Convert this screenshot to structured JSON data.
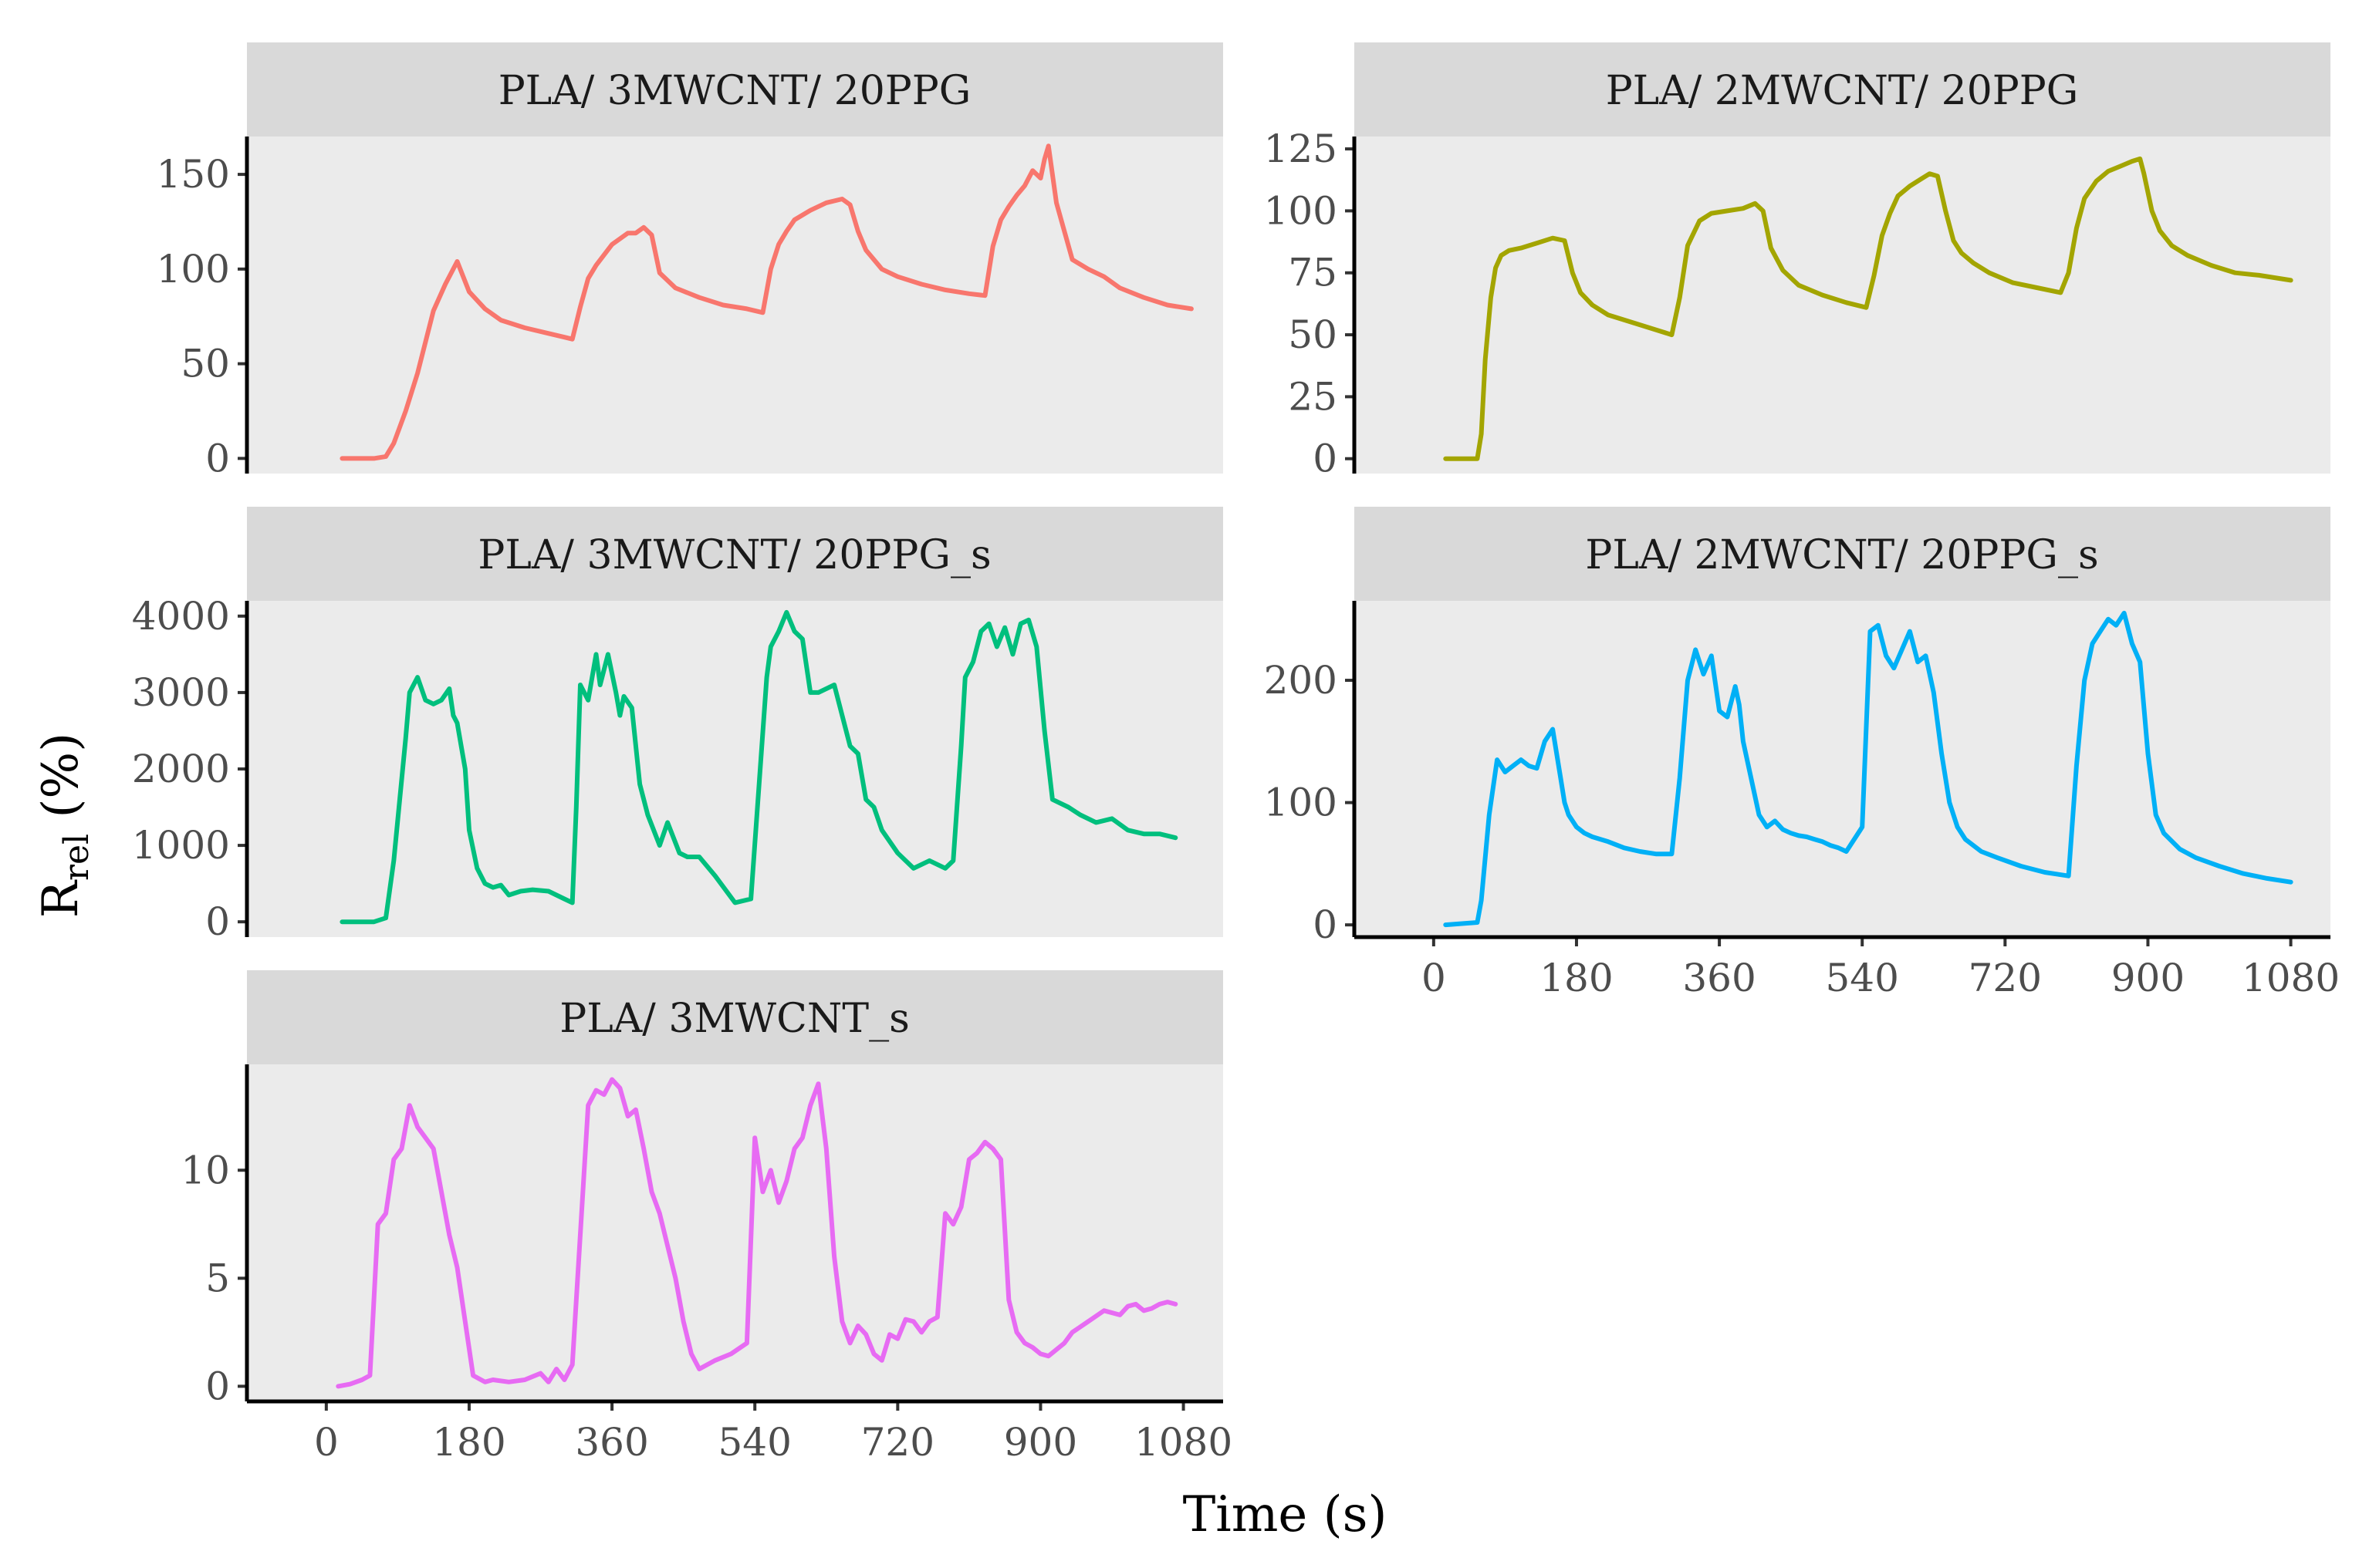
{
  "figure": {
    "xlabel": "Time (s)",
    "ylabel_main": "R",
    "ylabel_sub": "rel",
    "ylabel_unit": " (%)"
  },
  "chart_data": [
    {
      "type": "line",
      "title": "PLA/ 3MWCNT/ 20PPG",
      "color": "#F8766D",
      "xlim": [
        -100,
        1130
      ],
      "ylim": [
        -8,
        170
      ],
      "y_ticks": [
        0,
        50,
        100,
        150
      ],
      "x_ticks": [],
      "x": [
        20,
        60,
        75,
        85,
        100,
        115,
        135,
        150,
        165,
        180,
        200,
        220,
        250,
        280,
        300,
        310,
        320,
        330,
        340,
        360,
        380,
        390,
        400,
        410,
        420,
        440,
        470,
        500,
        530,
        550,
        560,
        570,
        580,
        590,
        610,
        630,
        650,
        660,
        670,
        680,
        700,
        720,
        750,
        780,
        810,
        830,
        840,
        850,
        860,
        870,
        880,
        890,
        900,
        905,
        910,
        920,
        930,
        940,
        960,
        980,
        1000,
        1030,
        1060,
        1090
      ],
      "y": [
        0,
        0,
        1,
        8,
        25,
        45,
        78,
        92,
        104,
        88,
        79,
        73,
        69,
        66,
        64,
        63,
        80,
        95,
        102,
        113,
        119,
        119,
        122,
        118,
        98,
        90,
        85,
        81,
        79,
        77,
        100,
        113,
        120,
        126,
        131,
        135,
        137,
        134,
        120,
        110,
        100,
        96,
        92,
        89,
        87,
        86,
        112,
        126,
        133,
        139,
        144,
        152,
        148,
        158,
        165,
        135,
        120,
        105,
        100,
        96,
        90,
        85,
        81,
        79
      ]
    },
    {
      "type": "line",
      "title": "PLA/ 2MWCNT/ 20PPG",
      "color": "#A3A500",
      "xlim": [
        -100,
        1130
      ],
      "ylim": [
        -6,
        130
      ],
      "y_ticks": [
        0,
        25,
        50,
        75,
        100,
        125
      ],
      "x_ticks": [],
      "x": [
        15,
        55,
        60,
        65,
        72,
        78,
        85,
        95,
        110,
        130,
        150,
        165,
        175,
        185,
        200,
        220,
        250,
        280,
        300,
        310,
        320,
        335,
        350,
        370,
        390,
        405,
        415,
        425,
        440,
        460,
        490,
        520,
        545,
        555,
        565,
        575,
        585,
        600,
        615,
        625,
        635,
        645,
        655,
        665,
        680,
        700,
        730,
        760,
        790,
        800,
        810,
        820,
        835,
        850,
        865,
        880,
        890,
        895,
        905,
        915,
        930,
        950,
        980,
        1010,
        1040,
        1080
      ],
      "y": [
        0,
        0,
        10,
        40,
        65,
        77,
        82,
        84,
        85,
        87,
        89,
        88,
        75,
        67,
        62,
        58,
        55,
        52,
        50,
        65,
        86,
        96,
        99,
        100,
        101,
        103,
        100,
        85,
        76,
        70,
        66,
        63,
        61,
        74,
        90,
        99,
        106,
        110,
        113,
        115,
        114,
        100,
        88,
        83,
        79,
        75,
        71,
        69,
        67,
        75,
        93,
        105,
        112,
        116,
        118,
        120,
        121,
        115,
        100,
        92,
        86,
        82,
        78,
        75,
        74,
        72
      ]
    },
    {
      "type": "line",
      "title": "PLA/ 3MWCNT/ 20PPG_s",
      "color": "#00BF7D",
      "xlim": [
        -100,
        1130
      ],
      "ylim": [
        -200,
        4200
      ],
      "y_ticks": [
        0,
        1000,
        2000,
        3000,
        4000
      ],
      "x_ticks": [],
      "x": [
        20,
        60,
        75,
        85,
        100,
        105,
        115,
        125,
        135,
        145,
        155,
        160,
        165,
        175,
        180,
        190,
        200,
        210,
        220,
        230,
        245,
        260,
        280,
        300,
        310,
        315,
        320,
        330,
        340,
        345,
        355,
        365,
        370,
        375,
        385,
        395,
        405,
        420,
        430,
        445,
        455,
        470,
        490,
        515,
        535,
        555,
        560,
        570,
        580,
        590,
        600,
        610,
        620,
        640,
        660,
        670,
        680,
        690,
        700,
        720,
        740,
        760,
        780,
        790,
        800,
        805,
        815,
        825,
        835,
        845,
        855,
        865,
        875,
        885,
        895,
        905,
        915,
        935,
        950,
        970,
        990,
        1010,
        1030,
        1050,
        1070
      ],
      "y": [
        0,
        0,
        50,
        800,
        2400,
        3000,
        3200,
        2900,
        2850,
        2900,
        3050,
        2700,
        2600,
        2000,
        1200,
        700,
        500,
        450,
        480,
        350,
        400,
        420,
        400,
        300,
        250,
        1500,
        3100,
        2900,
        3500,
        3100,
        3500,
        3000,
        2700,
        2950,
        2800,
        1800,
        1400,
        1000,
        1300,
        900,
        850,
        850,
        600,
        250,
        300,
        3200,
        3600,
        3800,
        4050,
        3800,
        3700,
        3000,
        3000,
        3100,
        2300,
        2200,
        1600,
        1500,
        1200,
        900,
        700,
        800,
        700,
        800,
        2300,
        3200,
        3400,
        3800,
        3900,
        3600,
        3850,
        3500,
        3900,
        3950,
        3600,
        2500,
        1600,
        1500,
        1400,
        1300,
        1350,
        1200,
        1150,
        1150,
        1100
      ]
    },
    {
      "type": "line",
      "title": "PLA/ 2MWCNT/ 20PPG_s",
      "color": "#00B0F6",
      "xlim": [
        -100,
        1130
      ],
      "ylim": [
        -10,
        265
      ],
      "y_ticks": [
        0,
        100,
        200
      ],
      "x_ticks": [
        0,
        180,
        360,
        540,
        720,
        900,
        1080
      ],
      "x": [
        15,
        55,
        60,
        70,
        80,
        90,
        100,
        110,
        120,
        130,
        140,
        150,
        160,
        165,
        170,
        180,
        190,
        200,
        220,
        240,
        260,
        280,
        300,
        310,
        320,
        330,
        340,
        350,
        360,
        370,
        380,
        385,
        390,
        400,
        410,
        420,
        430,
        440,
        450,
        460,
        470,
        480,
        490,
        500,
        510,
        520,
        540,
        550,
        560,
        570,
        580,
        590,
        600,
        610,
        620,
        630,
        640,
        650,
        660,
        670,
        690,
        710,
        740,
        770,
        800,
        810,
        820,
        830,
        840,
        850,
        860,
        870,
        880,
        890,
        900,
        910,
        920,
        940,
        960,
        990,
        1020,
        1050,
        1080
      ],
      "y": [
        0,
        2,
        20,
        90,
        135,
        125,
        130,
        135,
        130,
        128,
        150,
        160,
        120,
        100,
        90,
        80,
        75,
        72,
        68,
        63,
        60,
        58,
        58,
        120,
        200,
        225,
        205,
        220,
        175,
        170,
        195,
        180,
        150,
        120,
        90,
        80,
        85,
        78,
        75,
        73,
        72,
        70,
        68,
        65,
        63,
        60,
        80,
        240,
        245,
        220,
        210,
        225,
        240,
        215,
        220,
        190,
        140,
        100,
        80,
        70,
        60,
        55,
        48,
        43,
        40,
        130,
        200,
        230,
        240,
        250,
        245,
        255,
        230,
        215,
        140,
        90,
        75,
        62,
        55,
        48,
        42,
        38,
        35
      ]
    },
    {
      "type": "line",
      "title": "PLA/ 3MWCNT_s",
      "color": "#E76BF3",
      "xlim": [
        -100,
        1130
      ],
      "ylim": [
        -0.7,
        14.9
      ],
      "y_ticks": [
        0,
        5,
        10
      ],
      "x_ticks": [
        0,
        180,
        360,
        540,
        720,
        900,
        1080
      ],
      "x": [
        15,
        30,
        45,
        55,
        65,
        75,
        85,
        95,
        105,
        115,
        125,
        135,
        145,
        155,
        165,
        175,
        185,
        195,
        200,
        210,
        230,
        250,
        270,
        280,
        290,
        300,
        310,
        330,
        340,
        350,
        360,
        370,
        380,
        390,
        400,
        410,
        420,
        430,
        440,
        450,
        460,
        470,
        490,
        510,
        530,
        540,
        550,
        560,
        570,
        580,
        590,
        600,
        610,
        620,
        630,
        640,
        650,
        660,
        670,
        680,
        690,
        700,
        710,
        720,
        730,
        740,
        750,
        760,
        770,
        780,
        790,
        800,
        810,
        820,
        830,
        840,
        850,
        860,
        870,
        880,
        890,
        900,
        910,
        920,
        930,
        940,
        960,
        980,
        1000,
        1010,
        1020,
        1030,
        1040,
        1050,
        1060,
        1070
      ],
      "y": [
        0,
        0.1,
        0.3,
        0.5,
        7.5,
        8,
        10.5,
        11,
        13,
        12,
        11.5,
        11,
        9,
        7,
        5.5,
        3,
        0.5,
        0.3,
        0.2,
        0.3,
        0.2,
        0.3,
        0.6,
        0.2,
        0.8,
        0.3,
        1.0,
        13,
        13.7,
        13.5,
        14.2,
        13.8,
        12.5,
        12.8,
        11,
        9,
        8,
        6.5,
        5,
        3,
        1.5,
        0.8,
        1.2,
        1.5,
        2,
        11.5,
        9,
        10,
        8.5,
        9.5,
        11,
        11.5,
        13,
        14,
        11,
        6,
        3,
        2,
        2.8,
        2.4,
        1.5,
        1.2,
        2.4,
        2.2,
        3.1,
        3.0,
        2.5,
        3,
        3.2,
        8,
        7.5,
        8.3,
        10.5,
        10.8,
        11.3,
        11,
        10.5,
        4,
        2.5,
        2.0,
        1.8,
        1.5,
        1.4,
        1.7,
        2.0,
        2.5,
        3.0,
        3.5,
        3.3,
        3.7,
        3.8,
        3.5,
        3.6,
        3.8,
        3.9,
        3.8
      ]
    }
  ]
}
